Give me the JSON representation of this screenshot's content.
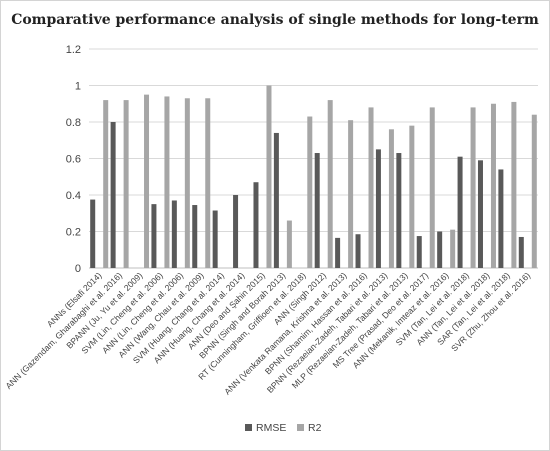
{
  "chart_data": {
    "type": "bar",
    "title": "Comparative performance analysis of single methods for long-term",
    "xlabel": "",
    "ylabel": "",
    "ylim": [
      0,
      1.2
    ],
    "yticks": [
      "0",
      "0.2",
      "0.4",
      "0.6",
      "0.8",
      "1",
      "1.2"
    ],
    "grid": true,
    "legend_position": "bottom",
    "categories": [
      "ANNs (Elsafi 2014)",
      "ANN (Gazendam, Gharabaghi et al. 2016)",
      "BPANN (Ju, Yu et al. 2009)",
      "SVM (Lin, Cheng et al. 2006)",
      "ANN (Lin, Cheng et al. 2006)",
      "ANN (Wang, Chau et al. 2009)",
      "SVM (Huang, Chang et al. 2014)",
      "ANN (Huang, Chang et al. 2014)",
      "ANN (Deo and Şahin 2015)",
      "BPNN (Singh and Borah 2013)",
      "RT (Cunningham, Griffioen et al. 2018)",
      "ANN (Singh 2012)",
      "ANN (Venkata Ramana, Krishna et al. 2013)",
      "BPNN (Shamim, Hassan et al. 2016)",
      "BPNN (Rezaeian-Zadeh, Tabari et al. 2013)",
      "MLP (Rezaeian-Zadeh, Tabari et al. 2013)",
      "MS Tree (Prasad, Deo et al. 2017)",
      "ANN (Mekanik, Imteaz et al. 2016)",
      "SVM (Tan, Lei et al. 2018)",
      "ANN (Tan, Lei et al. 2018)",
      "SAR (Tan, Lei et al. 2018)",
      "SVR (Zhu, Zhou et al. 2016)"
    ],
    "series": [
      {
        "name": "RMSE",
        "color": "#595959",
        "values": [
          0.375,
          0.8,
          0,
          0.35,
          0.37,
          0.345,
          0.315,
          0.4,
          0.47,
          0.74,
          0,
          0.63,
          0.165,
          0.185,
          0.65,
          0.63,
          0.175,
          0.2,
          0.61,
          0.59,
          0.54,
          0.17
        ]
      },
      {
        "name": "R2",
        "color": "#a6a6a6",
        "values": [
          0.92,
          0.92,
          0.95,
          0.94,
          0.93,
          0.93,
          0,
          0,
          1.0,
          0.26,
          0.83,
          0.92,
          0.81,
          0.88,
          0.76,
          0.78,
          0.88,
          0.21,
          0.88,
          0.9,
          0.91,
          0.84
        ]
      }
    ]
  }
}
